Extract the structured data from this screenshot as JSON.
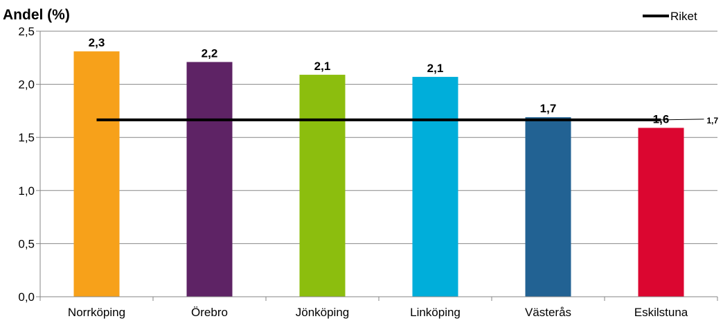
{
  "chart_data": {
    "type": "bar",
    "ylabel": "Andel (%)",
    "categories": [
      "Norrköping",
      "Örebro",
      "Jönköping",
      "Linköping",
      "Västerås",
      "Eskilstuna"
    ],
    "series": [
      {
        "values": [
          2.31,
          2.21,
          2.09,
          2.07,
          1.69,
          1.59
        ],
        "data_labels": [
          "2,3",
          "2,2",
          "2,1",
          "2,1",
          "1,7",
          "1,6"
        ]
      }
    ],
    "bar_colors": [
      "#F7A11A",
      "#5E2365",
      "#8CBE0E",
      "#00AEDA",
      "#226293",
      "#DB0630"
    ],
    "reference_line": {
      "name": "Riket",
      "value": 1.665,
      "label": "1,7",
      "color": "#000000"
    },
    "ylim": [
      0,
      2.5
    ],
    "yticks": [
      0,
      0.5,
      1.0,
      1.5,
      2.0,
      2.5
    ],
    "ytick_labels": [
      "0,0",
      "0,5",
      "1,0",
      "1,5",
      "2,0",
      "2,5"
    ],
    "grid": true,
    "legend": {
      "position": "top-right",
      "entries": [
        "Riket"
      ]
    }
  }
}
